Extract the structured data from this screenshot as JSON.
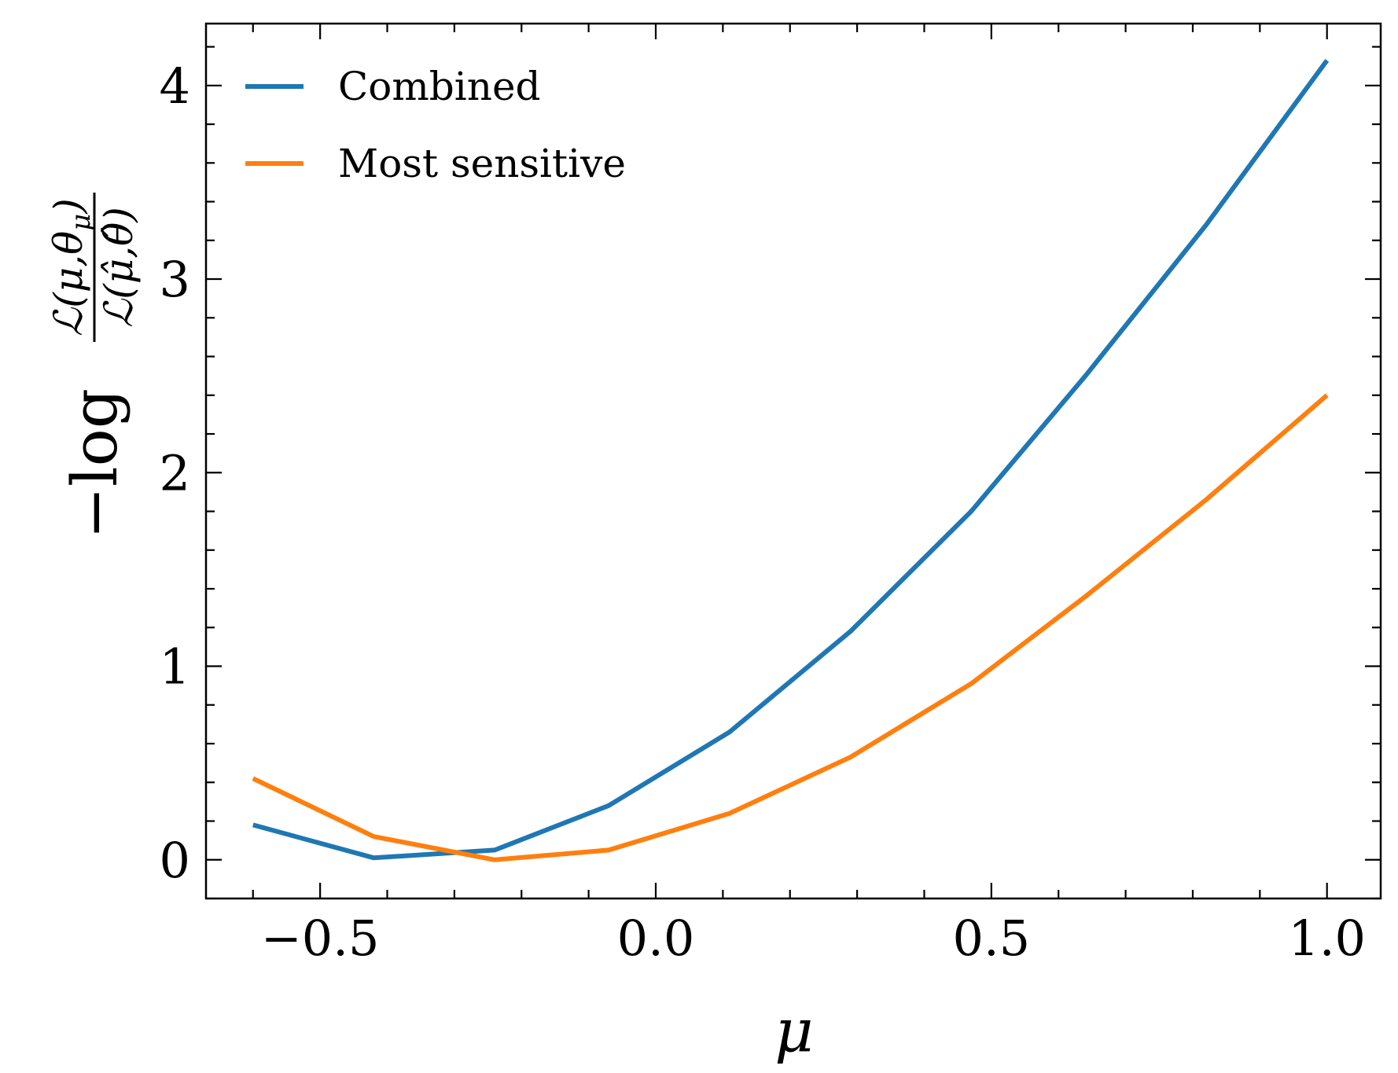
{
  "chart_data": {
    "type": "line",
    "title": "",
    "xlabel": "μ",
    "ylabel": "−log ℒ(μ,θ_μ) / ℒ(μ̂,θ̂)",
    "xlim": [
      -0.67,
      1.08
    ],
    "ylim": [
      -0.2,
      4.32
    ],
    "xticks": [
      -0.5,
      0.0,
      0.5,
      1.0
    ],
    "xtick_labels": [
      "−0.5",
      "0.0",
      "0.5",
      "1.0"
    ],
    "yticks": [
      0,
      1,
      2,
      3,
      4
    ],
    "ytick_labels": [
      "0",
      "1",
      "2",
      "3",
      "4"
    ],
    "x_minor_step": 0.1,
    "y_minor_step": 0.2,
    "grid": false,
    "legend_position": "top-left",
    "series": [
      {
        "name": "Combined",
        "color": "#1f77b4",
        "x": [
          -0.6,
          -0.42,
          -0.24,
          -0.07,
          0.11,
          0.29,
          0.47,
          0.64,
          0.82,
          1.0
        ],
        "y": [
          0.18,
          0.01,
          0.05,
          0.28,
          0.66,
          1.18,
          1.8,
          2.5,
          3.28,
          4.13
        ]
      },
      {
        "name": "Most sensitive",
        "color": "#ff7f0e",
        "x": [
          -0.6,
          -0.42,
          -0.24,
          -0.07,
          0.11,
          0.29,
          0.47,
          0.64,
          0.82,
          1.0
        ],
        "y": [
          0.42,
          0.12,
          0.0,
          0.05,
          0.24,
          0.53,
          0.91,
          1.36,
          1.86,
          2.4
        ]
      }
    ]
  }
}
